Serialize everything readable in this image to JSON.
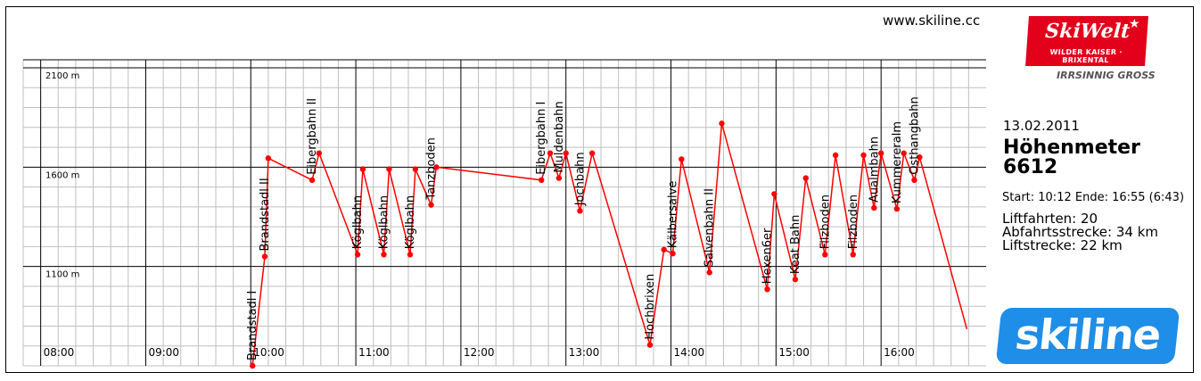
{
  "header": {
    "url": "www.skiline.cc"
  },
  "logo": {
    "brand": "SkiWelt",
    "subtitle": "WILDER KAISER · BRIXENTAL",
    "slogan": "IRRSINNIG GROSS",
    "bottom": "skiline"
  },
  "summary": {
    "date": "13.02.2011",
    "title": "Höhenmeter",
    "value": "6612",
    "start_label": "Start: 10:12",
    "end_label": "Ende: 16:55 (6:43)",
    "stats": [
      "Liftfahrten: 20",
      "Abfahrtsstrecke: 34 km",
      "Liftstrecke: 22 km"
    ]
  },
  "colors": {
    "line": "#ff0000",
    "grid_major": "#000000",
    "grid_minor": "#c0c0c0"
  },
  "chart_data": {
    "type": "line",
    "xlim": [
      "07:50",
      "17:00"
    ],
    "ylim": [
      600,
      2100
    ],
    "x_ticks": [
      "08:00",
      "09:00",
      "10:00",
      "11:00",
      "12:00",
      "13:00",
      "14:00",
      "15:00",
      "16:00"
    ],
    "y_ticks": [
      {
        "value": 2100,
        "label": "2100 m"
      },
      {
        "value": 1600,
        "label": "1600 m"
      },
      {
        "value": 1100,
        "label": "1100 m"
      }
    ],
    "points": [
      {
        "t": "10:01",
        "m": 600
      },
      {
        "t": "10:08",
        "m": 1150
      },
      {
        "t": "10:10",
        "m": 1645
      },
      {
        "t": "10:35",
        "m": 1535
      },
      {
        "t": "10:39",
        "m": 1670
      },
      {
        "t": "11:01",
        "m": 1160
      },
      {
        "t": "11:04",
        "m": 1590
      },
      {
        "t": "11:16",
        "m": 1160
      },
      {
        "t": "11:19",
        "m": 1590
      },
      {
        "t": "11:31",
        "m": 1160
      },
      {
        "t": "11:34",
        "m": 1590
      },
      {
        "t": "11:43",
        "m": 1410
      },
      {
        "t": "11:46",
        "m": 1600
      },
      {
        "t": "12:46",
        "m": 1535
      },
      {
        "t": "12:51",
        "m": 1670
      },
      {
        "t": "12:56",
        "m": 1545
      },
      {
        "t": "13:00",
        "m": 1670
      },
      {
        "t": "13:08",
        "m": 1380
      },
      {
        "t": "13:15",
        "m": 1670
      },
      {
        "t": "13:48",
        "m": 705
      },
      {
        "t": "13:56",
        "m": 1185
      },
      {
        "t": "14:01",
        "m": 1165
      },
      {
        "t": "14:06",
        "m": 1640
      },
      {
        "t": "14:22",
        "m": 1070
      },
      {
        "t": "14:29",
        "m": 1820
      },
      {
        "t": "14:55",
        "m": 985
      },
      {
        "t": "14:59",
        "m": 1465
      },
      {
        "t": "15:11",
        "m": 1035
      },
      {
        "t": "15:17",
        "m": 1545
      },
      {
        "t": "15:28",
        "m": 1160
      },
      {
        "t": "15:34",
        "m": 1660
      },
      {
        "t": "15:44",
        "m": 1160
      },
      {
        "t": "15:50",
        "m": 1660
      },
      {
        "t": "15:56",
        "m": 1395
      },
      {
        "t": "16:00",
        "m": 1670
      },
      {
        "t": "16:09",
        "m": 1390
      },
      {
        "t": "16:13",
        "m": 1670
      },
      {
        "t": "16:19",
        "m": 1535
      },
      {
        "t": "16:22",
        "m": 1650
      },
      {
        "t": "16:49",
        "m": 785
      }
    ],
    "annotations": [
      {
        "t": "10:01",
        "m": 600,
        "label": "Brandstadl I"
      },
      {
        "t": "10:08",
        "m": 1150,
        "label": "Brandstadl II"
      },
      {
        "t": "10:35",
        "m": 1535,
        "label": "Eibergbahn II"
      },
      {
        "t": "11:01",
        "m": 1160,
        "label": "Köglbahn"
      },
      {
        "t": "11:16",
        "m": 1160,
        "label": "Köglbahn"
      },
      {
        "t": "11:31",
        "m": 1160,
        "label": "Köglbahn"
      },
      {
        "t": "11:43",
        "m": 1410,
        "label": "Tanzboden"
      },
      {
        "t": "12:46",
        "m": 1535,
        "label": "Eibergbahn I"
      },
      {
        "t": "12:56",
        "m": 1545,
        "label": "Muldenbahn"
      },
      {
        "t": "13:08",
        "m": 1380,
        "label": "Jochbahn"
      },
      {
        "t": "13:48",
        "m": 705,
        "label": "Hochbrixen"
      },
      {
        "t": "14:01",
        "m": 1165,
        "label": "Kälbersalve"
      },
      {
        "t": "14:22",
        "m": 1070,
        "label": "Salvenbahn II"
      },
      {
        "t": "14:55",
        "m": 985,
        "label": "Hexen6er"
      },
      {
        "t": "15:11",
        "m": 1035,
        "label": "Keat Bahn"
      },
      {
        "t": "15:28",
        "m": 1160,
        "label": "Filzboden"
      },
      {
        "t": "15:44",
        "m": 1160,
        "label": "Filzboden"
      },
      {
        "t": "15:56",
        "m": 1395,
        "label": "Aualmbahn"
      },
      {
        "t": "16:09",
        "m": 1390,
        "label": "Kummereralm"
      },
      {
        "t": "16:19",
        "m": 1535,
        "label": "Osthangbahn"
      }
    ]
  }
}
